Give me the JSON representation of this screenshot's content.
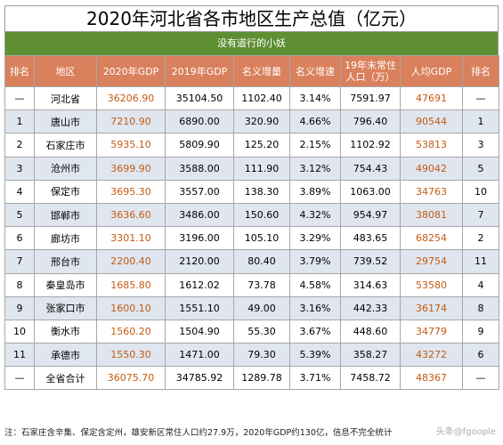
{
  "title": "2020年河北省各市地区生产总值（亿元）",
  "subtitle": "没有道行的小妖",
  "headers": [
    "排名",
    "地区",
    "2020年GDP",
    "2019年GDP",
    "名义增量",
    "名义增速",
    "19年末常住人口（万）",
    "人均GDP",
    "排名"
  ],
  "rows": [
    [
      "—",
      "河北省",
      "36206.90",
      "35104.50",
      "1102.40",
      "3.14%",
      "7591.97",
      "47691",
      "—"
    ],
    [
      "1",
      "唐山市",
      "7210.90",
      "6890.00",
      "320.90",
      "4.66%",
      "796.40",
      "90544",
      "1"
    ],
    [
      "2",
      "石家庄市",
      "5935.10",
      "5809.90",
      "125.20",
      "2.15%",
      "1102.92",
      "53813",
      "3"
    ],
    [
      "3",
      "沧州市",
      "3699.90",
      "3588.00",
      "111.90",
      "3.12%",
      "754.43",
      "49042",
      "5"
    ],
    [
      "4",
      "保定市",
      "3695.30",
      "3557.00",
      "138.30",
      "3.89%",
      "1063.00",
      "34763",
      "10"
    ],
    [
      "5",
      "邯郸市",
      "3636.60",
      "3486.00",
      "150.60",
      "4.32%",
      "954.97",
      "38081",
      "7"
    ],
    [
      "6",
      "廊坊市",
      "3301.10",
      "3196.00",
      "105.10",
      "3.29%",
      "483.65",
      "68254",
      "2"
    ],
    [
      "7",
      "邢台市",
      "2200.40",
      "2120.00",
      "80.40",
      "3.79%",
      "739.52",
      "29754",
      "11"
    ],
    [
      "8",
      "秦皇岛市",
      "1685.80",
      "1612.02",
      "73.78",
      "4.58%",
      "314.63",
      "53580",
      "4"
    ],
    [
      "9",
      "张家口市",
      "1600.10",
      "1551.10",
      "49.00",
      "3.16%",
      "442.33",
      "36174",
      "8"
    ],
    [
      "10",
      "衡水市",
      "1560.20",
      "1504.90",
      "55.30",
      "3.67%",
      "448.60",
      "34779",
      "9"
    ],
    [
      "11",
      "承德市",
      "1550.30",
      "1471.00",
      "79.30",
      "5.39%",
      "358.27",
      "43272",
      "6"
    ],
    [
      "—",
      "全省合计",
      "36075.70",
      "34785.92",
      "1289.78",
      "3.71%",
      "7458.72",
      "48367",
      "—"
    ]
  ],
  "note": "注：石家庄含辛集、保定含定州，雄安新区常住人口约27.9万，2020年GDP约130亿，信息不完全统计",
  "watermark": "头条@fgoople",
  "colors": {
    "header_bg": "#d9805c",
    "subtitle_bg": "#5f8f33",
    "stripe_bg": "#dfe6ef",
    "accent_text": "#c55a11"
  }
}
